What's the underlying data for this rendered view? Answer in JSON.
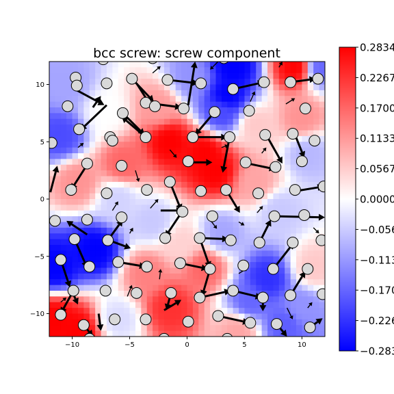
{
  "chart_data": {
    "type": "heatmap",
    "title": "bcc screw: screw component",
    "xlim": [
      -12,
      12
    ],
    "ylim": [
      -12,
      12
    ],
    "xticks": [
      -10,
      -5,
      0,
      5,
      10
    ],
    "yticks": [
      -10,
      -5,
      0,
      5,
      10
    ],
    "xtick_labels": [
      "−10",
      "−5",
      "0",
      "5",
      "10"
    ],
    "ytick_labels": [
      "−10",
      "−5",
      "0",
      "5",
      "10"
    ],
    "colormap": "bwr",
    "colors": {
      "low": "#0000ff",
      "mid": "#ffffff",
      "high": "#ff0000",
      "atom_fill": "#d9d9d9",
      "atom_edge": "#000000",
      "arrow": "#000000"
    },
    "colorbar": {
      "vmin": -0.2834,
      "vmax": 0.2834,
      "ticks": [
        0.2834,
        0.2267,
        0.17,
        0.1133,
        0.0567,
        0.0,
        -0.0567,
        -0.1133,
        -0.17,
        -0.2267,
        -0.2834
      ],
      "labels": [
        "0.2834",
        "0.2267",
        "0.1700",
        "0.1133",
        "0.0567",
        "0.0000",
        "−0.0567",
        "−0.1133",
        "−0.1700",
        "−0.2267",
        "−0.2834"
      ]
    },
    "regions": [
      {
        "x": 3.5,
        "y": 9.0,
        "value": -0.2834
      },
      {
        "x": 4.0,
        "y": 11.5,
        "value": -0.2834
      },
      {
        "x": 0.5,
        "y": 10.5,
        "value": -0.12
      },
      {
        "x": 1.5,
        "y": 4.0,
        "value": 0.2834
      },
      {
        "x": -1.5,
        "y": 5.0,
        "value": 0.2834
      },
      {
        "x": 2.5,
        "y": 2.5,
        "value": 0.2834
      },
      {
        "x": -5.5,
        "y": 3.0,
        "value": 0.17
      },
      {
        "x": -2.5,
        "y": 8.0,
        "value": 0.11
      },
      {
        "x": 9.5,
        "y": 11.5,
        "value": 0.2834
      },
      {
        "x": 11.5,
        "y": 11.5,
        "value": -0.17
      },
      {
        "x": -8.0,
        "y": -4.5,
        "value": -0.2834
      },
      {
        "x": -11.5,
        "y": -6.0,
        "value": -0.2834
      },
      {
        "x": -11.5,
        "y": -10.5,
        "value": 0.2834
      },
      {
        "x": -9.5,
        "y": -11.5,
        "value": 0.2834
      },
      {
        "x": 7.0,
        "y": -7.0,
        "value": -0.23
      },
      {
        "x": 5.5,
        "y": -9.0,
        "value": -0.17
      },
      {
        "x": 10.0,
        "y": -9.5,
        "value": -0.12
      },
      {
        "x": -11.0,
        "y": 5.5,
        "value": -0.2
      },
      {
        "x": -10.5,
        "y": 10.0,
        "value": -0.1
      },
      {
        "x": -1.5,
        "y": -9.5,
        "value": 0.23
      },
      {
        "x": 1.5,
        "y": -6.0,
        "value": 0.17
      },
      {
        "x": -3.5,
        "y": -6.5,
        "value": 0.14
      },
      {
        "x": 10.0,
        "y": 7.0,
        "value": 0.12
      },
      {
        "x": 6.0,
        "y": 1.5,
        "value": 0.1
      },
      {
        "x": 10.5,
        "y": 4.0,
        "value": -0.08
      },
      {
        "x": 3.0,
        "y": -3.0,
        "value": -0.1
      },
      {
        "x": -6.0,
        "y": 0.0,
        "value": -0.05
      },
      {
        "x": 8.0,
        "y": -1.0,
        "value": -0.06
      },
      {
        "x": -9.5,
        "y": 1.5,
        "value": 0.12
      },
      {
        "x": -3.0,
        "y": -2.0,
        "value": -0.06
      },
      {
        "x": 3.0,
        "y": 7.5,
        "value": -0.2
      },
      {
        "x": 6.0,
        "y": 6.5,
        "value": 0.06
      },
      {
        "x": -7.0,
        "y": 7.5,
        "value": 0.0
      },
      {
        "x": 11.0,
        "y": -6.0,
        "value": 0.06
      },
      {
        "x": -6.0,
        "y": -10.5,
        "value": -0.04
      },
      {
        "x": 4.5,
        "y": -11.5,
        "value": 0.1
      },
      {
        "x": 8.5,
        "y": -11.0,
        "value": -0.18
      },
      {
        "x": -0.5,
        "y": -4.0,
        "value": 0.05
      }
    ],
    "atoms": [
      [
        -9.7,
        10.6
      ],
      [
        -9.6,
        9.9
      ],
      [
        -7.0,
        10.1
      ],
      [
        -4.8,
        10.5
      ],
      [
        -1.7,
        10.4
      ],
      [
        1.2,
        10.1
      ],
      [
        4.0,
        9.6
      ],
      [
        6.7,
        10.2
      ],
      [
        9.0,
        10.2
      ],
      [
        11.4,
        10.5
      ],
      [
        -10.4,
        8.1
      ],
      [
        -3.6,
        8.4
      ],
      [
        -2.8,
        8.1
      ],
      [
        -0.3,
        7.9
      ],
      [
        2.4,
        7.6
      ],
      [
        5.4,
        7.7
      ],
      [
        10.3,
        7.9
      ],
      [
        -9.4,
        6.1
      ],
      [
        -5.6,
        7.5
      ],
      [
        -6.7,
        5.4
      ],
      [
        -6.5,
        5.1
      ],
      [
        -3.6,
        5.4
      ],
      [
        0.5,
        5.4
      ],
      [
        3.7,
        5.4
      ],
      [
        6.8,
        5.6
      ],
      [
        9.2,
        5.7
      ],
      [
        11.1,
        5.1
      ],
      [
        -11.8,
        4.9
      ],
      [
        -8.7,
        3.1
      ],
      [
        -5.7,
        2.9
      ],
      [
        0.1,
        3.3
      ],
      [
        5.1,
        3.2
      ],
      [
        7.7,
        2.8
      ],
      [
        10.0,
        3.3
      ],
      [
        -10.1,
        0.8
      ],
      [
        -7.0,
        0.5
      ],
      [
        -3.5,
        0.8
      ],
      [
        -1.5,
        1.5
      ],
      [
        1.2,
        0.7
      ],
      [
        3.4,
        0.8
      ],
      [
        6.2,
        0.5
      ],
      [
        9.4,
        0.8
      ],
      [
        11.9,
        1.1
      ],
      [
        -11.5,
        -1.9
      ],
      [
        -8.7,
        -1.8
      ],
      [
        -5.7,
        -1.6
      ],
      [
        -0.4,
        -1.1
      ],
      [
        2.2,
        -1.5
      ],
      [
        7.6,
        -1.5
      ],
      [
        10.2,
        -1.4
      ],
      [
        -9.8,
        -3.5
      ],
      [
        -6.9,
        -3.6
      ],
      [
        -1.9,
        -3.4
      ],
      [
        1.1,
        -3.4
      ],
      [
        3.8,
        -3.6
      ],
      [
        6.3,
        -3.8
      ],
      [
        9.2,
        -3.8
      ],
      [
        11.7,
        -3.6
      ],
      [
        -11.0,
        -5.3
      ],
      [
        -8.5,
        -5.9
      ],
      [
        -6.0,
        -5.5
      ],
      [
        -3.5,
        -5.9
      ],
      [
        -0.6,
        -5.6
      ],
      [
        2.0,
        -6.1
      ],
      [
        4.9,
        -5.8
      ],
      [
        7.5,
        -6.1
      ],
      [
        10.5,
        -6.1
      ],
      [
        -9.9,
        -8.0
      ],
      [
        -7.1,
        -8.0
      ],
      [
        -4.4,
        -8.2
      ],
      [
        -1.4,
        -8.2
      ],
      [
        1.1,
        -8.6
      ],
      [
        4.0,
        -8.0
      ],
      [
        6.6,
        -8.6
      ],
      [
        9.0,
        -8.4
      ],
      [
        11.8,
        -8.3
      ],
      [
        -11.0,
        -10.1
      ],
      [
        -9.0,
        -11.0
      ],
      [
        -6.3,
        -10.5
      ],
      [
        -3.6,
        -10.5
      ],
      [
        0.1,
        -10.7
      ],
      [
        2.7,
        -10.2
      ],
      [
        5.5,
        -10.8
      ],
      [
        7.8,
        -10.9
      ],
      [
        10.7,
        -11.2
      ],
      [
        -8.5,
        -12.2
      ],
      [
        -2.0,
        -12.2
      ],
      [
        3.5,
        -12.2
      ],
      [
        -7.3,
        12.2
      ],
      [
        -3.0,
        12.3
      ],
      [
        3.2,
        12.3
      ]
    ],
    "arrows": [
      {
        "from": [
          -4.8,
          10.5
        ],
        "to": [
          -2.9,
          8.5
        ]
      },
      {
        "from": [
          -4.4,
          10.1
        ],
        "to": [
          -3.0,
          7.9
        ]
      },
      {
        "from": [
          -1.7,
          10.4
        ],
        "to": [
          1.0,
          10.1
        ]
      },
      {
        "from": [
          0.1,
          8.2
        ],
        "to": [
          0.7,
          12.0
        ]
      },
      {
        "from": [
          4.0,
          9.6
        ],
        "to": [
          6.7,
          10.2
        ]
      },
      {
        "from": [
          9.0,
          10.2
        ],
        "to": [
          11.2,
          10.5
        ]
      },
      {
        "from": [
          -7.0,
          8.2
        ],
        "to": [
          -9.3,
          6.0
        ]
      },
      {
        "from": [
          -9.8,
          9.6
        ],
        "to": [
          -7.2,
          8.2
        ]
      },
      {
        "from": [
          -5.6,
          7.5
        ],
        "to": [
          -3.7,
          5.6
        ]
      },
      {
        "from": [
          -3.6,
          8.4
        ],
        "to": [
          -0.5,
          8.0
        ]
      },
      {
        "from": [
          2.4,
          7.6
        ],
        "to": [
          0.7,
          5.6
        ]
      },
      {
        "from": [
          -3.6,
          5.4
        ],
        "to": [
          -5.7,
          7.2
        ]
      },
      {
        "from": [
          0.5,
          5.4
        ],
        "to": [
          3.5,
          5.4
        ]
      },
      {
        "from": [
          3.7,
          5.4
        ],
        "to": [
          3.1,
          2.3
        ]
      },
      {
        "from": [
          7.0,
          5.4
        ],
        "to": [
          8.3,
          3.1
        ]
      },
      {
        "from": [
          9.4,
          5.6
        ],
        "to": [
          10.2,
          3.6
        ]
      },
      {
        "from": [
          5.3,
          3.1
        ],
        "to": [
          7.7,
          2.6
        ]
      },
      {
        "from": [
          0.3,
          3.2
        ],
        "to": [
          2.2,
          3.2
        ]
      },
      {
        "from": [
          -8.7,
          3.0
        ],
        "to": [
          -10.1,
          0.8
        ]
      },
      {
        "from": [
          -11.9,
          0.6
        ],
        "to": [
          -11.3,
          2.9
        ]
      },
      {
        "from": [
          -1.5,
          1.5
        ],
        "to": [
          -0.5,
          -1.0
        ]
      },
      {
        "from": [
          3.4,
          0.8
        ],
        "to": [
          4.6,
          -1.2
        ]
      },
      {
        "from": [
          9.5,
          0.7
        ],
        "to": [
          11.9,
          1.1
        ]
      },
      {
        "from": [
          -2.3,
          -1.0
        ],
        "to": [
          -0.4,
          -1.0
        ]
      },
      {
        "from": [
          7.6,
          -1.5
        ],
        "to": [
          12.0,
          -1.6
        ]
      },
      {
        "from": [
          -8.7,
          -3.1
        ],
        "to": [
          -10.5,
          -1.9
        ]
      },
      {
        "from": [
          -0.5,
          -1.2
        ],
        "to": [
          -1.9,
          -3.3
        ]
      },
      {
        "from": [
          1.1,
          -3.4
        ],
        "to": [
          3.6,
          -3.5
        ]
      },
      {
        "from": [
          -6.9,
          -3.6
        ],
        "to": [
          -5.6,
          -1.8
        ]
      },
      {
        "from": [
          -6.8,
          -3.6
        ],
        "to": [
          -4.9,
          -4.3
        ]
      },
      {
        "from": [
          -9.8,
          -3.5
        ],
        "to": [
          -8.7,
          -6.0
        ]
      },
      {
        "from": [
          -11.0,
          -5.3
        ],
        "to": [
          -10.2,
          -7.7
        ]
      },
      {
        "from": [
          -6.0,
          -5.5
        ],
        "to": [
          -3.6,
          -5.9
        ]
      },
      {
        "from": [
          1.1,
          -3.4
        ],
        "to": [
          2.0,
          -6.0
        ]
      },
      {
        "from": [
          -0.6,
          -5.6
        ],
        "to": [
          1.8,
          -6.1
        ]
      },
      {
        "from": [
          2.0,
          -6.1
        ],
        "to": [
          1.3,
          -8.5
        ]
      },
      {
        "from": [
          7.5,
          -6.1
        ],
        "to": [
          9.3,
          -3.8
        ]
      },
      {
        "from": [
          9.0,
          -8.4
        ],
        "to": [
          10.3,
          -6.3
        ]
      },
      {
        "from": [
          6.3,
          -3.8
        ],
        "to": [
          7.3,
          -1.8
        ]
      },
      {
        "from": [
          1.1,
          -8.6
        ],
        "to": [
          3.8,
          -8.0
        ]
      },
      {
        "from": [
          4.0,
          -8.0
        ],
        "to": [
          6.5,
          -8.6
        ]
      },
      {
        "from": [
          -9.9,
          -8.0
        ],
        "to": [
          -11.0,
          -10.0
        ]
      },
      {
        "from": [
          -1.4,
          -8.2
        ],
        "to": [
          -1.8,
          -9.7
        ]
      },
      {
        "from": [
          -2.0,
          -9.7
        ],
        "to": [
          -0.5,
          -8.8
        ]
      },
      {
        "from": [
          2.7,
          -10.2
        ],
        "to": [
          5.4,
          -10.8
        ]
      },
      {
        "from": [
          -9.0,
          -11.0
        ],
        "to": [
          -8.2,
          -12.0
        ]
      },
      {
        "from": [
          -10.0,
          -8.1
        ],
        "to": [
          -9.5,
          -9.2
        ]
      },
      {
        "from": [
          7.8,
          -10.9
        ],
        "to": [
          8.7,
          -12.0
        ]
      },
      {
        "from": [
          -7.7,
          -10.0
        ],
        "to": [
          -7.5,
          -11.5
        ]
      },
      {
        "from": [
          10.7,
          -11.2
        ],
        "to": [
          11.8,
          -10.4
        ]
      },
      {
        "from": [
          6.6,
          -8.6
        ],
        "to": [
          6.6,
          -9.8
        ]
      },
      {
        "from": [
          -8.2,
          8.0
        ],
        "to": [
          -7.5,
          9.0
        ]
      },
      {
        "from": [
          2.7,
          12.0
        ],
        "to": [
          2.0,
          11.3
        ]
      },
      {
        "from": [
          8.0,
          11.5
        ],
        "to": [
          8.3,
          12.0
        ]
      },
      {
        "from": [
          -4.5,
          2.5
        ],
        "to": [
          -4.2,
          1.5
        ]
      },
      {
        "from": [
          -3.2,
          -0.8
        ],
        "to": [
          -2.5,
          0.0
        ]
      },
      {
        "from": [
          -5.2,
          -8.5
        ],
        "to": [
          -4.8,
          -7.5
        ]
      },
      {
        "from": [
          -2.4,
          -7.0
        ],
        "to": [
          -2.3,
          -6.1
        ]
      },
      {
        "from": [
          4.5,
          -6.5
        ],
        "to": [
          5.3,
          -6.0
        ]
      },
      {
        "from": [
          8.7,
          -9.5
        ],
        "to": [
          9.2,
          -10.5
        ]
      },
      {
        "from": [
          11.0,
          -2.5
        ],
        "to": [
          11.5,
          -3.0
        ]
      },
      {
        "from": [
          2.0,
          -1.8
        ],
        "to": [
          2.6,
          -2.6
        ]
      },
      {
        "from": [
          -1.5,
          4.3
        ],
        "to": [
          -0.9,
          3.6
        ]
      },
      {
        "from": [
          5.5,
          8.5
        ],
        "to": [
          5.9,
          9.4
        ]
      },
      {
        "from": [
          8.6,
          8.3
        ],
        "to": [
          9.4,
          8.8
        ]
      },
      {
        "from": [
          -6.5,
          -1.0
        ],
        "to": [
          -6.0,
          -0.2
        ]
      },
      {
        "from": [
          6.1,
          -1.2
        ],
        "to": [
          6.6,
          -0.6
        ]
      },
      {
        "from": [
          -11.0,
          -9.0
        ],
        "to": [
          -10.5,
          -8.6
        ]
      },
      {
        "from": [
          3.0,
          4.5
        ],
        "to": [
          3.6,
          4.7
        ]
      },
      {
        "from": [
          -3.0,
          11.0
        ],
        "to": [
          -2.3,
          11.6
        ]
      },
      {
        "from": [
          10.5,
          -9.5
        ],
        "to": [
          10.9,
          -9.0
        ]
      },
      {
        "from": [
          -9.5,
          4.5
        ],
        "to": [
          -9.0,
          4.9
        ]
      },
      {
        "from": [
          6.5,
          4.0
        ],
        "to": [
          6.9,
          4.5
        ]
      },
      {
        "from": [
          -5.0,
          -3.0
        ],
        "to": [
          -4.7,
          -2.5
        ]
      },
      {
        "from": [
          4.5,
          -2.0
        ],
        "to": [
          5.0,
          -2.3
        ]
      }
    ]
  }
}
